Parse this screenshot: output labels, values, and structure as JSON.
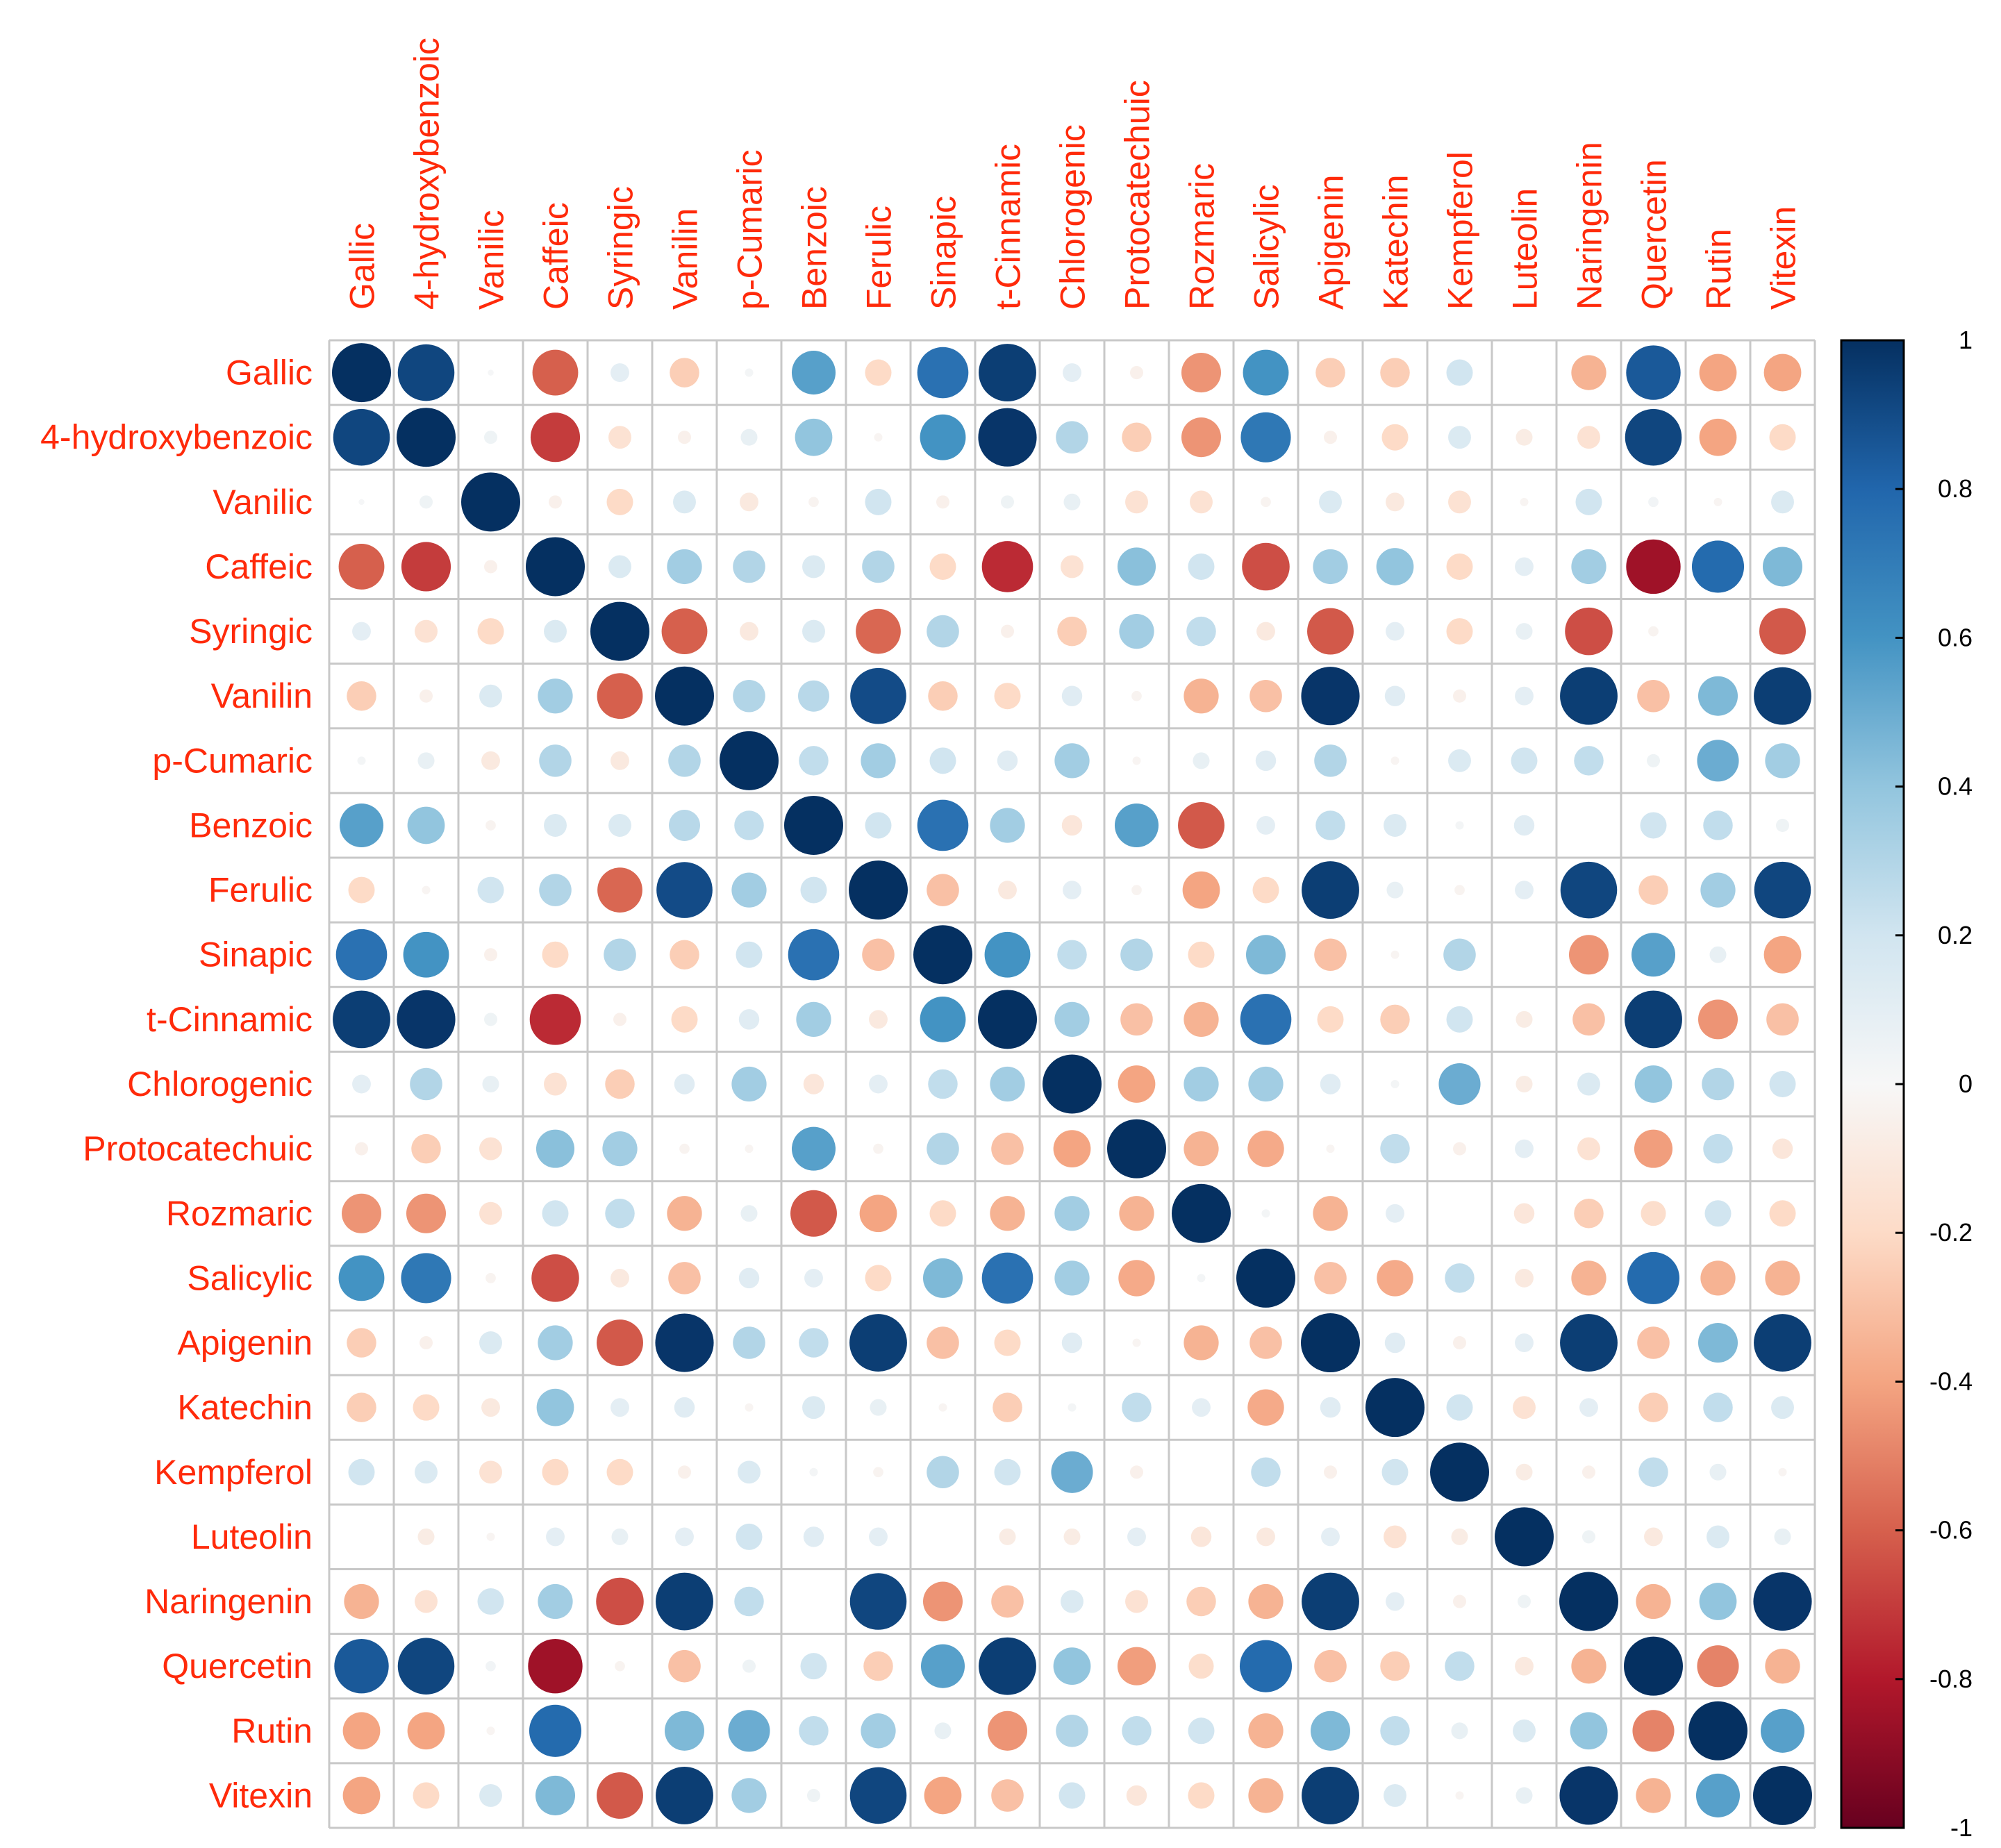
{
  "chart_data": {
    "type": "heatmap",
    "style": "correlation-circles",
    "labels": [
      "Gallic",
      "4-hydroxybenzoic",
      "Vanilic",
      "Caffeic",
      "Syringic",
      "Vanilin",
      "p-Cumaric",
      "Benzoic",
      "Ferulic",
      "Sinapic",
      "t-Cinnamic",
      "Chlorogenic",
      "Protocatechuic",
      "Rozmaric",
      "Salicylic",
      "Apigenin",
      "Katechin",
      "Kempferol",
      "Luteolin",
      "Naringenin",
      "Quercetin",
      "Rutin",
      "Vitexin"
    ],
    "colorbar_ticks": [
      "1",
      "0.8",
      "0.6",
      "0.4",
      "0.2",
      "0",
      "-0.2",
      "-0.4",
      "-0.6",
      "-0.8",
      "-1"
    ],
    "value_range": [
      -1,
      1
    ],
    "colors": {
      "label": "#ff2a0a",
      "grid": "#c8c8c8",
      "axis": "#000000"
    },
    "matrix": [
      [
        1,
        0.92,
        0.01,
        -0.6,
        0.1,
        -0.25,
        0.02,
        0.55,
        -0.2,
        0.75,
        0.95,
        0.1,
        -0.05,
        -0.45,
        0.6,
        -0.25,
        -0.25,
        0.2,
        0,
        -0.35,
        0.85,
        -0.4,
        -0.4
      ],
      [
        0.92,
        1,
        0.05,
        -0.7,
        -0.15,
        -0.05,
        0.08,
        0.4,
        -0.02,
        0.6,
        0.98,
        0.3,
        -0.25,
        -0.45,
        0.72,
        -0.05,
        -0.2,
        0.15,
        -0.08,
        -0.15,
        0.92,
        -0.4,
        -0.2
      ],
      [
        0.01,
        0.05,
        1,
        -0.05,
        -0.2,
        0.15,
        -0.1,
        -0.03,
        0.2,
        -0.05,
        0.05,
        0.08,
        -0.15,
        -0.15,
        -0.03,
        0.15,
        -0.1,
        -0.15,
        -0.02,
        0.2,
        0.03,
        -0.02,
        0.15
      ],
      [
        -0.6,
        -0.7,
        -0.05,
        1,
        0.15,
        0.35,
        0.3,
        0.15,
        0.3,
        -0.2,
        -0.75,
        -0.15,
        0.42,
        0.2,
        -0.65,
        0.35,
        0.4,
        -0.2,
        0.1,
        0.35,
        -0.85,
        0.78,
        0.45
      ],
      [
        0.1,
        -0.15,
        -0.2,
        0.15,
        1,
        -0.6,
        -0.1,
        0.15,
        -0.58,
        0.3,
        -0.05,
        -0.25,
        0.35,
        0.25,
        -0.1,
        -0.62,
        0.1,
        -0.2,
        0.08,
        -0.65,
        -0.03,
        0,
        -0.62
      ],
      [
        -0.25,
        -0.05,
        0.15,
        0.35,
        -0.6,
        1,
        0.3,
        0.28,
        0.9,
        -0.25,
        -0.2,
        0.12,
        -0.03,
        -0.35,
        -0.3,
        0.98,
        0.12,
        -0.05,
        0.1,
        0.95,
        -0.3,
        0.45,
        0.95
      ],
      [
        0.02,
        0.08,
        -0.1,
        0.3,
        -0.1,
        0.3,
        1,
        0.25,
        0.35,
        0.2,
        0.12,
        0.35,
        -0.02,
        0.08,
        0.12,
        0.3,
        -0.02,
        0.15,
        0.2,
        0.25,
        0.05,
        0.5,
        0.35
      ],
      [
        0.55,
        0.4,
        -0.03,
        0.15,
        0.15,
        0.28,
        0.25,
        1,
        0.2,
        0.75,
        0.35,
        -0.12,
        0.55,
        -0.62,
        0.1,
        0.25,
        0.15,
        0.02,
        0.12,
        0,
        0.2,
        0.25,
        0.05
      ],
      [
        -0.2,
        -0.02,
        0.2,
        0.3,
        -0.58,
        0.9,
        0.35,
        0.2,
        1,
        -0.3,
        -0.1,
        0.1,
        -0.03,
        -0.4,
        -0.2,
        0.95,
        0.08,
        -0.03,
        0.1,
        0.92,
        -0.25,
        0.35,
        0.92
      ],
      [
        0.75,
        0.6,
        -0.05,
        -0.2,
        0.3,
        -0.25,
        0.2,
        0.75,
        -0.3,
        1,
        0.6,
        0.25,
        0.3,
        -0.2,
        0.45,
        -0.3,
        -0.02,
        0.3,
        0,
        -0.45,
        0.55,
        0.08,
        -0.4
      ],
      [
        0.95,
        0.98,
        0.05,
        -0.75,
        -0.05,
        -0.2,
        0.12,
        0.35,
        -0.1,
        0.6,
        1,
        0.35,
        -0.3,
        -0.35,
        0.75,
        -0.2,
        -0.25,
        0.2,
        -0.08,
        -0.3,
        0.95,
        -0.45,
        -0.3
      ],
      [
        0.1,
        0.3,
        0.08,
        -0.15,
        -0.25,
        0.12,
        0.35,
        -0.12,
        0.1,
        0.25,
        0.35,
        1,
        -0.4,
        0.35,
        0.35,
        0.12,
        0.02,
        0.5,
        -0.08,
        0.15,
        0.4,
        0.3,
        0.2
      ],
      [
        -0.05,
        -0.25,
        -0.15,
        0.42,
        0.35,
        -0.03,
        -0.02,
        0.55,
        -0.03,
        0.3,
        -0.3,
        -0.4,
        1,
        -0.35,
        -0.38,
        -0.02,
        0.25,
        -0.05,
        0.1,
        -0.15,
        -0.42,
        0.25,
        -0.12
      ],
      [
        -0.45,
        -0.45,
        -0.15,
        0.2,
        0.25,
        -0.35,
        0.08,
        -0.62,
        -0.4,
        -0.2,
        -0.35,
        0.35,
        -0.35,
        1,
        0.02,
        -0.35,
        0.1,
        0,
        -0.12,
        -0.25,
        -0.18,
        0.2,
        -0.2
      ],
      [
        0.6,
        0.72,
        -0.03,
        -0.65,
        -0.1,
        -0.3,
        0.12,
        0.1,
        -0.2,
        0.45,
        0.75,
        0.35,
        -0.38,
        0.02,
        1,
        -0.3,
        -0.38,
        0.25,
        -0.1,
        -0.35,
        0.78,
        -0.35,
        -0.35
      ],
      [
        -0.25,
        -0.05,
        0.15,
        0.35,
        -0.62,
        0.98,
        0.3,
        0.25,
        0.95,
        -0.3,
        -0.2,
        0.12,
        -0.02,
        -0.35,
        -0.3,
        1,
        0.12,
        -0.05,
        0.1,
        0.95,
        -0.3,
        0.45,
        0.95
      ],
      [
        -0.25,
        -0.2,
        -0.1,
        0.4,
        0.1,
        0.12,
        -0.02,
        0.15,
        0.08,
        -0.02,
        -0.25,
        0.02,
        0.25,
        0.1,
        -0.38,
        0.12,
        1,
        0.2,
        -0.15,
        0.1,
        -0.25,
        0.25,
        0.15
      ],
      [
        0.2,
        0.15,
        -0.15,
        -0.2,
        -0.2,
        -0.05,
        0.15,
        0.02,
        -0.03,
        0.3,
        0.2,
        0.5,
        -0.05,
        0,
        0.25,
        -0.05,
        0.2,
        1,
        -0.08,
        -0.05,
        0.25,
        0.08,
        -0.02
      ],
      [
        0,
        -0.08,
        -0.02,
        0.1,
        0.08,
        0.1,
        0.2,
        0.12,
        0.1,
        0,
        -0.08,
        -0.08,
        0.1,
        -0.12,
        -0.1,
        0.1,
        -0.15,
        -0.08,
        1,
        0.05,
        -0.1,
        0.15,
        0.08
      ],
      [
        -0.35,
        -0.15,
        0.2,
        0.35,
        -0.65,
        0.95,
        0.25,
        0,
        0.92,
        -0.45,
        -0.3,
        0.15,
        -0.15,
        -0.25,
        -0.35,
        0.95,
        0.1,
        -0.05,
        0.05,
        1,
        -0.35,
        0.4,
        0.98
      ],
      [
        0.85,
        0.92,
        0.03,
        -0.85,
        -0.03,
        -0.3,
        0.05,
        0.2,
        -0.25,
        0.55,
        0.95,
        0.4,
        -0.42,
        -0.18,
        0.78,
        -0.3,
        -0.25,
        0.25,
        -0.1,
        -0.35,
        1,
        -0.5,
        -0.35
      ],
      [
        -0.4,
        -0.4,
        -0.02,
        0.78,
        0,
        0.45,
        0.5,
        0.25,
        0.35,
        0.08,
        -0.45,
        0.3,
        0.25,
        0.2,
        -0.35,
        0.45,
        0.25,
        0.08,
        0.15,
        0.4,
        -0.5,
        1,
        0.55
      ],
      [
        -0.4,
        -0.2,
        0.15,
        0.45,
        -0.62,
        0.95,
        0.35,
        0.05,
        0.92,
        -0.4,
        -0.3,
        0.2,
        -0.12,
        -0.2,
        -0.35,
        0.95,
        0.15,
        -0.02,
        0.08,
        0.98,
        -0.35,
        0.55,
        1
      ]
    ]
  }
}
